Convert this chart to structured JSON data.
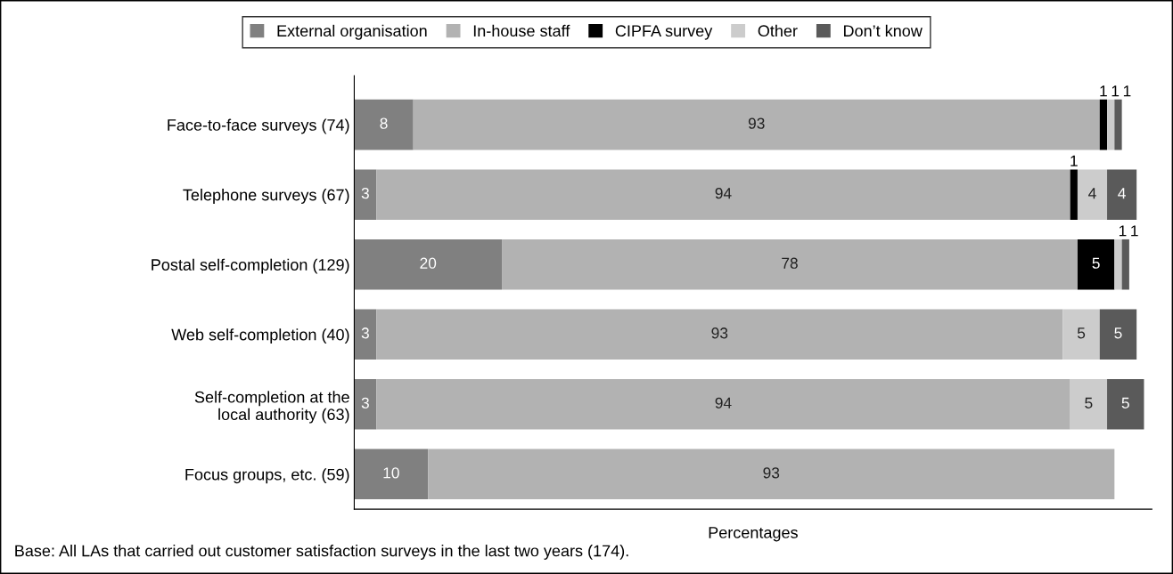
{
  "chart_data": {
    "type": "bar",
    "orientation": "horizontal",
    "stacked": true,
    "data_labels": true,
    "legend": "top",
    "grid": false,
    "xlabel": "Percentages",
    "categories": [
      "Face-to-face surveys (74)",
      "Telephone surveys (67)",
      "Postal self-completion (129)",
      "Web self-completion (40)",
      "Self-completion at the\nlocal authority (63)",
      "Focus groups, etc. (59)"
    ],
    "series": [
      {
        "name": "External organisation",
        "color": "#808080",
        "values": [
          8,
          3,
          20,
          3,
          3,
          10
        ]
      },
      {
        "name": "In-house staff",
        "color": "#b2b2b2",
        "values": [
          93,
          94,
          78,
          93,
          94,
          93
        ]
      },
      {
        "name": "CIPFA survey",
        "color": "#000000",
        "values": [
          1,
          1,
          5,
          null,
          null,
          null
        ]
      },
      {
        "name": "Other",
        "color": "#cccccc",
        "values": [
          1,
          4,
          1,
          5,
          5,
          null
        ]
      },
      {
        "name": "Don’t know",
        "color": "#5a5a5a",
        "values": [
          1,
          4,
          1,
          5,
          5,
          null
        ]
      }
    ],
    "annotations": [
      "Base: All LAs that carried out customer satisfaction surveys in the last two years (174)."
    ]
  }
}
